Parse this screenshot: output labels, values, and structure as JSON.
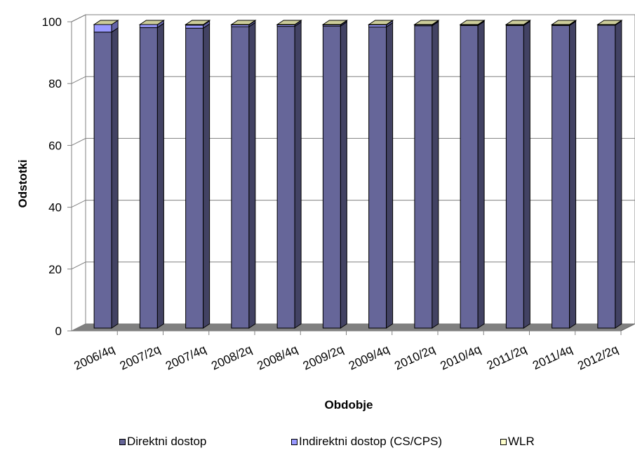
{
  "chart_data": {
    "type": "bar",
    "stacked": true,
    "three_d": true,
    "title": "",
    "xlabel": "Obdobje",
    "ylabel": "Odstotki",
    "ylim": [
      0,
      100
    ],
    "yticks": [
      "0",
      "20",
      "40",
      "60",
      "80",
      "100"
    ],
    "grid": true,
    "legend_position": "bottom",
    "categories": [
      "2006/4q",
      "2007/2q",
      "2007/4q",
      "2008/2q",
      "2008/4q",
      "2009/2q",
      "2009/4q",
      "2010/2q",
      "2010/4q",
      "2011/2q",
      "2011/4q",
      "2012/2q"
    ],
    "series": [
      {
        "name": "Direktni dostop",
        "color": "#666699",
        "values": [
          97.5,
          99.0,
          98.8,
          99.3,
          99.4,
          99.5,
          99.2,
          99.6,
          99.7,
          99.7,
          99.7,
          99.8
        ]
      },
      {
        "name": "Indirektni dostop (CS/CPS)",
        "color": "#9999ff",
        "values": [
          2.5,
          1.0,
          1.0,
          0.6,
          0.5,
          0.4,
          0.7,
          0.3,
          0.2,
          0.2,
          0.2,
          0.1
        ]
      },
      {
        "name": "WLR",
        "color": "#ffffcc",
        "values": [
          0.0,
          0.0,
          0.2,
          0.1,
          0.1,
          0.1,
          0.1,
          0.1,
          0.1,
          0.1,
          0.1,
          0.1
        ]
      }
    ]
  }
}
